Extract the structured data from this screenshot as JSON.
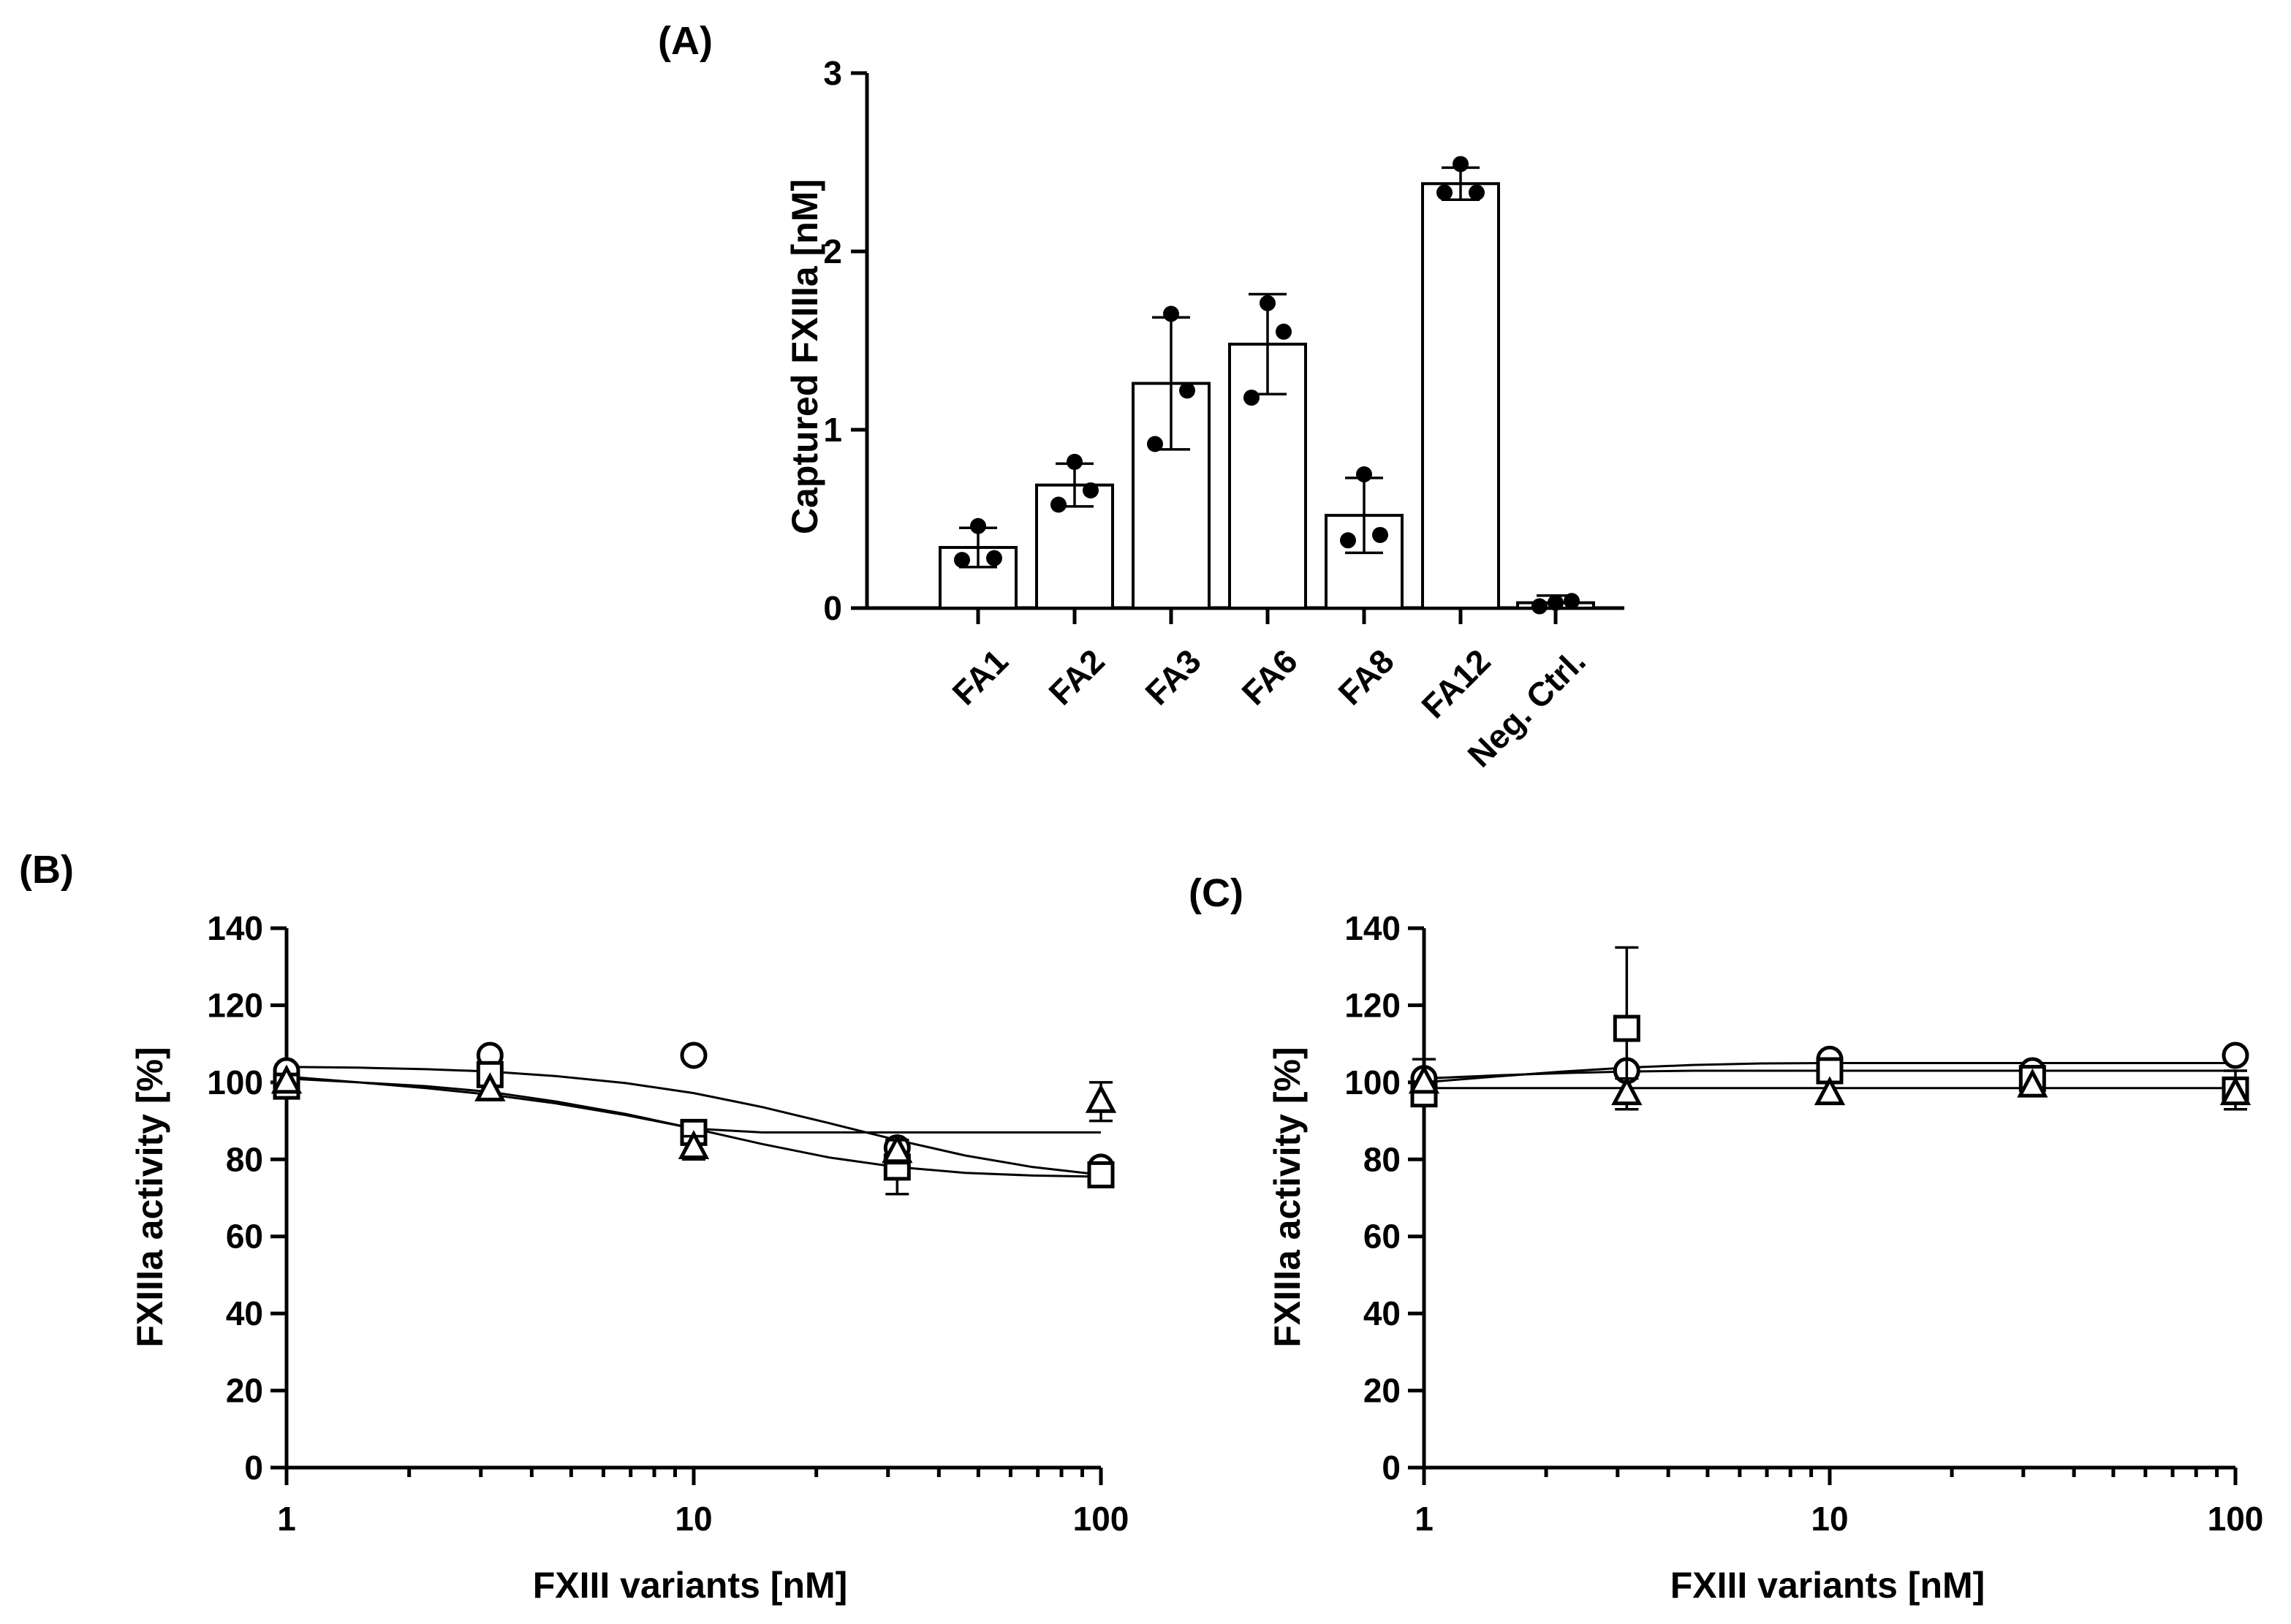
{
  "chart_data": [
    {
      "panel": "(A)",
      "type": "bar",
      "categories": [
        "FA1",
        "FA2",
        "FA3",
        "FA6",
        "FA8",
        "FA12",
        "Neg. Ctrl."
      ],
      "values": [
        0.34,
        0.69,
        1.26,
        1.48,
        0.52,
        2.38,
        0.03
      ],
      "sd": [
        0.11,
        0.12,
        0.37,
        0.28,
        0.21,
        0.09,
        0.04
      ],
      "points": [
        [
          0.27,
          0.28,
          0.46
        ],
        [
          0.58,
          0.66,
          0.82
        ],
        [
          0.92,
          1.22,
          1.65
        ],
        [
          1.18,
          1.55,
          1.71
        ],
        [
          0.38,
          0.41,
          0.75
        ],
        [
          2.33,
          2.33,
          2.49
        ],
        [
          0.01,
          0.04,
          0.03
        ]
      ],
      "title": "",
      "xlabel": "",
      "ylabel": "Captured FXIIIa [nM]",
      "ylim": [
        0,
        3
      ],
      "yticks": [
        "0",
        "1",
        "2",
        "3"
      ]
    },
    {
      "panel": "(B)",
      "type": "scatter",
      "xscale": "log",
      "xlabel": "FXIII variants [nM]",
      "ylabel": "FXIIIa activity [%]",
      "xlim": [
        1,
        100
      ],
      "ylim": [
        0,
        140
      ],
      "xticks": [
        "1",
        "10",
        "100"
      ],
      "yticks": [
        "0",
        "20",
        "40",
        "60",
        "80",
        "100",
        "120",
        "140"
      ],
      "x": [
        1,
        3.16,
        10,
        31.6,
        100
      ],
      "series": [
        {
          "name": "circle",
          "marker": "circle",
          "values": [
            103,
            107,
            107,
            83,
            78
          ],
          "sd": [
            0,
            0,
            0,
            0,
            0
          ]
        },
        {
          "name": "square",
          "marker": "square",
          "values": [
            99,
            102,
            87,
            78,
            76
          ],
          "sd": [
            0,
            0,
            3,
            7,
            0
          ]
        },
        {
          "name": "triangle",
          "marker": "triangle",
          "values": [
            100,
            98,
            83,
            82,
            95
          ],
          "sd": [
            0,
            0,
            3,
            3,
            5
          ]
        }
      ],
      "fits": [
        {
          "x": [
            1,
            1.5,
            2.2,
            3.16,
            4.6,
            6.8,
            10,
            14.7,
            21.5,
            31.6,
            46.4,
            68,
            100
          ],
          "y": [
            104,
            103.8,
            103.4,
            102.8,
            101.6,
            99.8,
            97.2,
            93.6,
            89.4,
            85,
            81,
            78,
            76
          ]
        },
        {
          "x": [
            1,
            1.5,
            2.2,
            3.16,
            4.6,
            6.8,
            10,
            14.7,
            21.5,
            31.6,
            46.4,
            68,
            100
          ],
          "y": [
            101.5,
            100,
            98.5,
            96.8,
            94.5,
            91.5,
            88,
            87,
            87,
            87,
            87,
            87,
            87
          ]
        },
        {
          "x": [
            1,
            1.5,
            2.2,
            3.16,
            4.6,
            6.8,
            10,
            14.7,
            21.5,
            31.6,
            46.4,
            68,
            100
          ],
          "y": [
            101,
            100,
            99,
            97.5,
            95,
            91.8,
            88,
            84,
            80.5,
            78,
            76.5,
            75.8,
            75.5
          ]
        }
      ]
    },
    {
      "panel": "(C)",
      "type": "scatter",
      "xscale": "log",
      "xlabel": "FXIII variants [nM]",
      "ylabel": "FXIIIa activity [%]",
      "xlim": [
        1,
        100
      ],
      "ylim": [
        0,
        140
      ],
      "xticks": [
        "1",
        "10",
        "100"
      ],
      "yticks": [
        "0",
        "20",
        "40",
        "60",
        "80",
        "100",
        "120",
        "140"
      ],
      "x": [
        1,
        3.16,
        10,
        31.6,
        100
      ],
      "series": [
        {
          "name": "circle",
          "marker": "circle",
          "values": [
            101,
            103,
            106,
            103,
            107
          ],
          "sd": [
            5,
            0,
            0,
            0,
            0
          ]
        },
        {
          "name": "square",
          "marker": "square",
          "values": [
            97,
            114,
            103,
            101,
            98
          ],
          "sd": [
            0,
            21,
            0,
            0,
            5
          ]
        },
        {
          "name": "triangle",
          "marker": "triangle",
          "values": [
            100,
            97,
            97,
            99,
            97
          ],
          "sd": [
            0,
            4,
            0,
            0,
            0
          ]
        }
      ],
      "fits": [
        {
          "x": [
            1,
            1.5,
            2.2,
            3.16,
            4.6,
            6.8,
            10,
            31.6,
            100
          ],
          "y": [
            100,
            101.5,
            102.8,
            103.8,
            104.5,
            104.9,
            105,
            105,
            105
          ]
        },
        {
          "x": [
            1,
            1.5,
            2.2,
            3.16,
            4.6,
            6.8,
            10,
            31.6,
            100
          ],
          "y": [
            101,
            101.8,
            102.4,
            102.8,
            103,
            103,
            103,
            103,
            103
          ]
        },
        {
          "x": [
            1,
            100
          ],
          "y": [
            98.5,
            98.5
          ]
        }
      ]
    }
  ]
}
